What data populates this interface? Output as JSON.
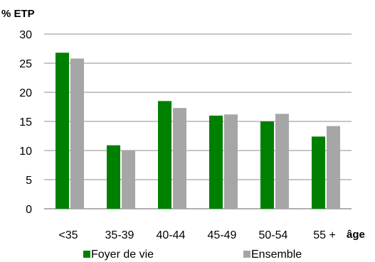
{
  "chart_data": {
    "type": "bar",
    "title": "",
    "ylabel": "% ETP",
    "xlabel": "âge",
    "categories": [
      "<35",
      "35-39",
      "40-44",
      "45-49",
      "50-54",
      "55 +"
    ],
    "series": [
      {
        "name": "Foyer de vie",
        "color": "#008000",
        "values": [
          26.8,
          10.9,
          18.5,
          16.0,
          15.0,
          12.4
        ]
      },
      {
        "name": "Ensemble",
        "color": "#a6a6a6",
        "values": [
          25.8,
          10.0,
          17.3,
          16.2,
          16.3,
          14.2
        ]
      }
    ],
    "ylim": [
      0,
      30
    ],
    "yticks": [
      "0",
      "5",
      "10",
      "15",
      "20",
      "25",
      "30"
    ],
    "grid": true,
    "legend": "bottom"
  }
}
